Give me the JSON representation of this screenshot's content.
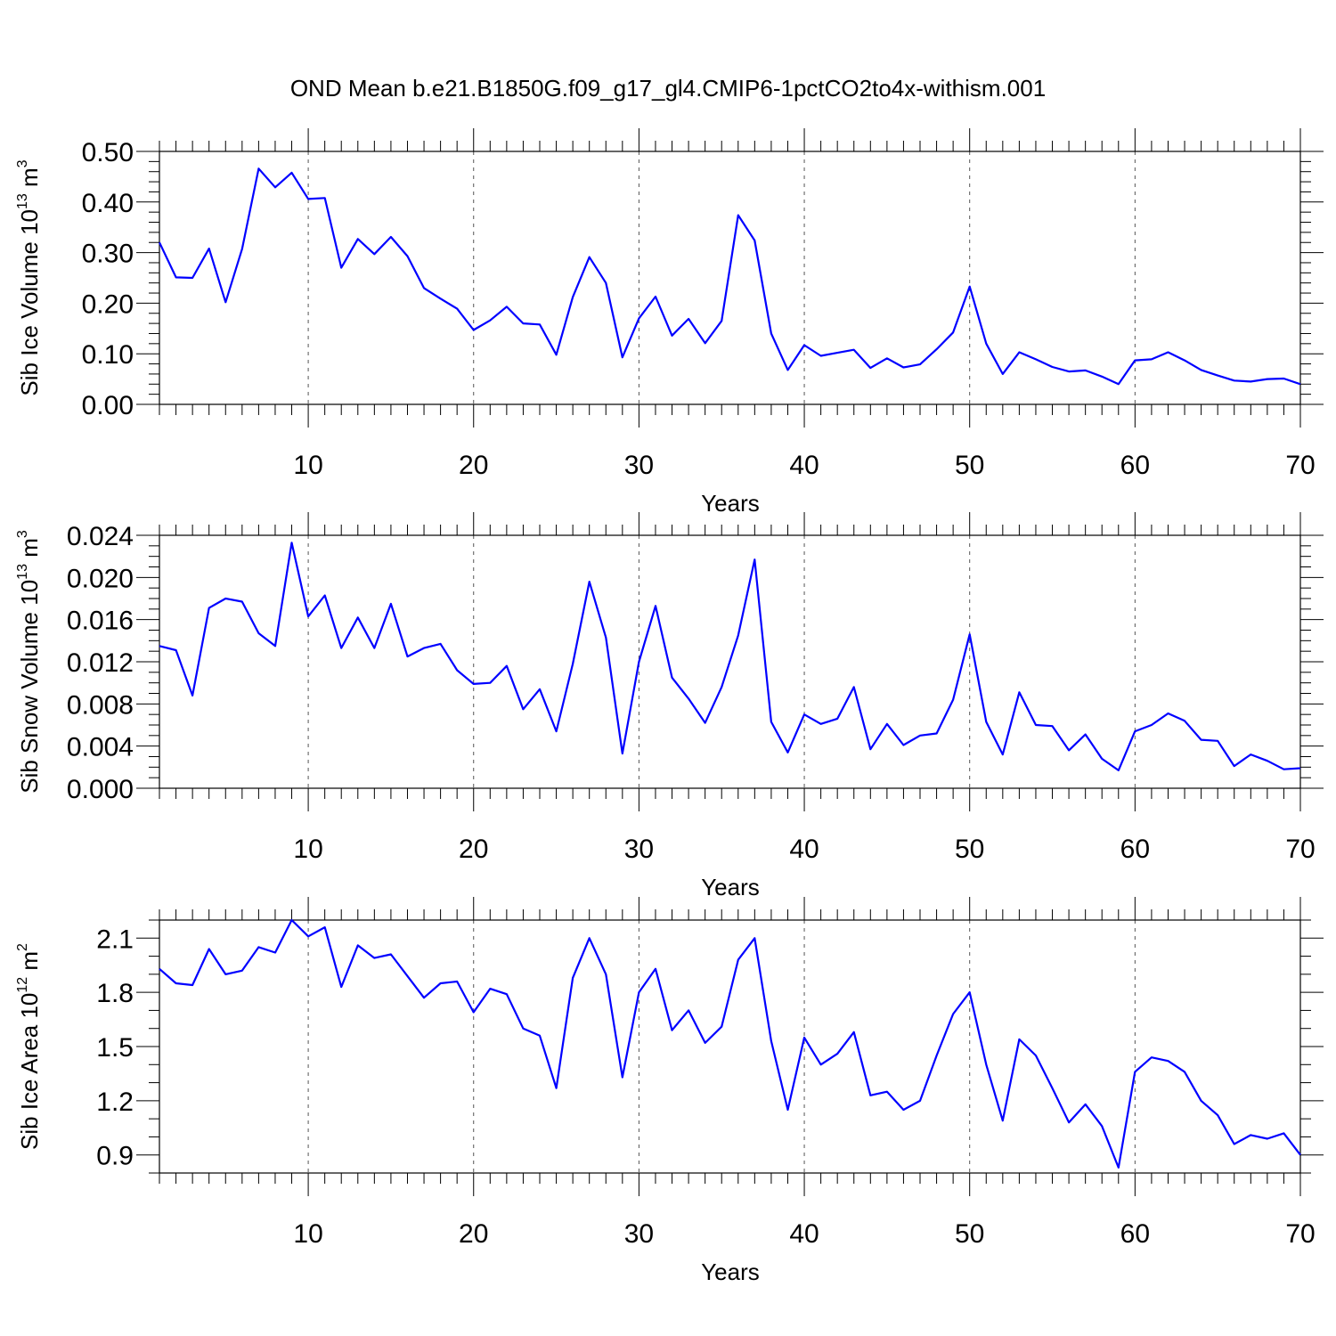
{
  "title": "OND Mean b.e21.B1850G.f09_g17_gl4.CMIP6-1pctCO2to4x-withism.001",
  "chart_data": [
    {
      "type": "line",
      "ylabel": "Sib Ice Volume 10",
      "ylabel_exp": "13",
      "ylabel_unit": " m",
      "ylabel_unit_exp": "3",
      "xlabel": "Years",
      "xlim": [
        1,
        70
      ],
      "ylim": [
        0,
        0.5
      ],
      "xticks": [
        10,
        20,
        30,
        40,
        50,
        60,
        70
      ],
      "xtick_labels": [
        "10",
        "20",
        "30",
        "40",
        "50",
        "60",
        "70"
      ],
      "yticks": [
        0,
        0.1,
        0.2,
        0.3,
        0.4,
        0.5
      ],
      "ytick_labels": [
        "0.00",
        "0.10",
        "0.20",
        "0.30",
        "0.40",
        "0.50"
      ],
      "yminor": 0.02,
      "color": "#0000ff",
      "values": [
        0.32,
        0.251,
        0.25,
        0.308,
        0.202,
        0.307,
        0.466,
        0.429,
        0.458,
        0.406,
        0.408,
        0.27,
        0.327,
        0.297,
        0.331,
        0.293,
        0.23,
        0.209,
        0.189,
        0.147,
        0.166,
        0.193,
        0.16,
        0.158,
        0.098,
        0.212,
        0.291,
        0.24,
        0.093,
        0.17,
        0.213,
        0.136,
        0.169,
        0.121,
        0.165,
        0.374,
        0.324,
        0.14,
        0.068,
        0.117,
        0.096,
        0.102,
        0.108,
        0.072,
        0.091,
        0.073,
        0.079,
        0.109,
        0.142,
        0.233,
        0.12,
        0.06,
        0.103,
        0.089,
        0.074,
        0.065,
        0.067,
        0.055,
        0.04,
        0.087,
        0.089,
        0.103,
        0.087,
        0.068,
        0.057,
        0.047,
        0.045,
        0.05,
        0.051,
        0.04
      ]
    },
    {
      "type": "line",
      "ylabel": "Sib Snow Volume 10",
      "ylabel_exp": "13",
      "ylabel_unit": " m",
      "ylabel_unit_exp": "3",
      "xlabel": "Years",
      "xlim": [
        1,
        70
      ],
      "ylim": [
        0,
        0.024
      ],
      "xticks": [
        10,
        20,
        30,
        40,
        50,
        60,
        70
      ],
      "xtick_labels": [
        "10",
        "20",
        "30",
        "40",
        "50",
        "60",
        "70"
      ],
      "yticks": [
        0,
        0.004,
        0.008,
        0.012,
        0.016,
        0.02,
        0.024
      ],
      "ytick_labels": [
        "0.000",
        "0.004",
        "0.008",
        "0.012",
        "0.016",
        "0.020",
        "0.024"
      ],
      "yminor": 0.001,
      "color": "#0000ff",
      "values": [
        0.0135,
        0.0131,
        0.0088,
        0.0171,
        0.018,
        0.0177,
        0.0147,
        0.0135,
        0.0233,
        0.0163,
        0.0183,
        0.0133,
        0.0162,
        0.0133,
        0.0175,
        0.0125,
        0.0133,
        0.0137,
        0.0112,
        0.0099,
        0.01,
        0.0116,
        0.0075,
        0.0094,
        0.0054,
        0.0118,
        0.0196,
        0.0143,
        0.0033,
        0.012,
        0.0173,
        0.0105,
        0.0085,
        0.0062,
        0.0096,
        0.0145,
        0.0217,
        0.0063,
        0.0034,
        0.007,
        0.0061,
        0.0066,
        0.0096,
        0.0037,
        0.0061,
        0.0041,
        0.005,
        0.0052,
        0.0084,
        0.0146,
        0.0063,
        0.0032,
        0.0091,
        0.006,
        0.0059,
        0.0036,
        0.0051,
        0.0028,
        0.0017,
        0.0054,
        0.006,
        0.0071,
        0.0064,
        0.0046,
        0.0045,
        0.0021,
        0.0032,
        0.0026,
        0.0018,
        0.0019
      ]
    },
    {
      "type": "line",
      "ylabel": "Sib Ice Area 10",
      "ylabel_exp": "12",
      "ylabel_unit": " m",
      "ylabel_unit_exp": "2",
      "xlabel": "Years",
      "xlim": [
        1,
        70
      ],
      "ylim": [
        0.8,
        2.2
      ],
      "xticks": [
        10,
        20,
        30,
        40,
        50,
        60,
        70
      ],
      "xtick_labels": [
        "10",
        "20",
        "30",
        "40",
        "50",
        "60",
        "70"
      ],
      "yticks": [
        0.9,
        1.2,
        1.5,
        1.8,
        2.1
      ],
      "ytick_labels": [
        "0.9",
        "1.2",
        "1.5",
        "1.8",
        "2.1"
      ],
      "yminor": 0.1,
      "color": "#0000ff",
      "values": [
        1.93,
        1.85,
        1.84,
        2.04,
        1.9,
        1.92,
        2.05,
        2.02,
        2.2,
        2.11,
        2.16,
        1.83,
        2.06,
        1.99,
        2.01,
        1.89,
        1.77,
        1.85,
        1.86,
        1.69,
        1.82,
        1.79,
        1.6,
        1.56,
        1.27,
        1.88,
        2.1,
        1.9,
        1.33,
        1.8,
        1.93,
        1.59,
        1.7,
        1.52,
        1.61,
        1.98,
        2.1,
        1.53,
        1.15,
        1.55,
        1.4,
        1.46,
        1.58,
        1.23,
        1.25,
        1.15,
        1.2,
        1.45,
        1.68,
        1.8,
        1.4,
        1.09,
        1.54,
        1.45,
        1.27,
        1.08,
        1.18,
        1.06,
        0.83,
        1.36,
        1.44,
        1.42,
        1.36,
        1.2,
        1.12,
        0.96,
        1.01,
        0.99,
        1.02,
        0.9
      ]
    }
  ]
}
